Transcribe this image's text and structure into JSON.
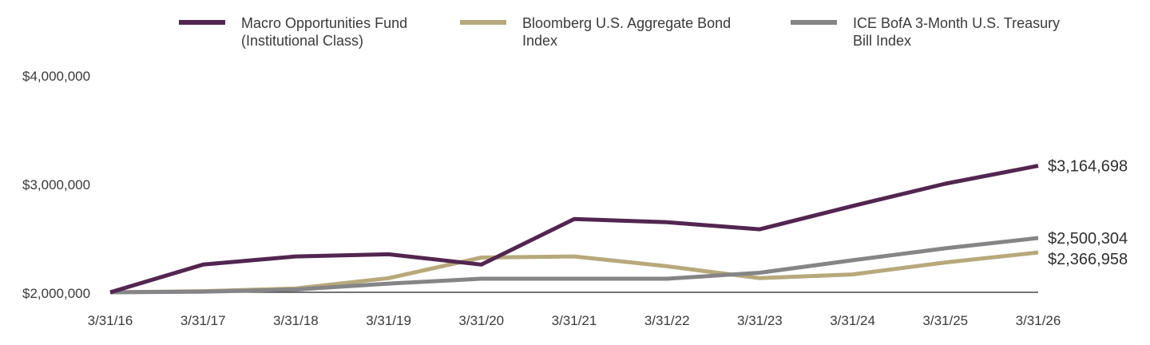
{
  "chart_data": {
    "type": "line",
    "title": "",
    "xlabel": "",
    "ylabel": "",
    "x": [
      "3/31/16",
      "3/31/17",
      "3/31/18",
      "3/31/19",
      "3/31/20",
      "3/31/21",
      "3/31/22",
      "3/31/23",
      "3/31/24",
      "3/31/25",
      "3/31/26"
    ],
    "yticks": [
      {
        "value": 2000000,
        "label": "$2,000,000"
      },
      {
        "value": 3000000,
        "label": "$3,000,000"
      },
      {
        "value": 4000000,
        "label": "$4,000,000"
      }
    ],
    "ylim": [
      2000000,
      4000000
    ],
    "grid": false,
    "legend_position": "top",
    "series": [
      {
        "name": "Macro Opportunities Fund (Institutional Class)",
        "legend_lines": [
          "Macro Opportunities Fund",
          "(Institutional Class)"
        ],
        "color": "#522650",
        "values": [
          2000000,
          2255000,
          2330000,
          2350000,
          2255000,
          2675000,
          2645000,
          2580000,
          2795000,
          3000000,
          3164698
        ],
        "end_label": "$3,164,698"
      },
      {
        "name": "Bloomberg U.S. Aggregate Bond Index",
        "legend_lines": [
          "Bloomberg U.S. Aggregate Bond",
          "Index"
        ],
        "color": "#b7a97b",
        "values": [
          2000000,
          2010000,
          2035000,
          2130000,
          2320000,
          2330000,
          2240000,
          2130000,
          2165000,
          2275000,
          2366958
        ],
        "end_label": "$2,366,958"
      },
      {
        "name": "ICE BofA 3-Month U.S. Treasury Bill Index",
        "legend_lines": [
          "ICE BofA 3-Month U.S. Treasury",
          "Bill Index"
        ],
        "color": "#858588",
        "values": [
          2000000,
          2005000,
          2025000,
          2080000,
          2125000,
          2125000,
          2125000,
          2180000,
          2295000,
          2405000,
          2500304
        ],
        "end_label": "$2,500,304"
      }
    ]
  }
}
